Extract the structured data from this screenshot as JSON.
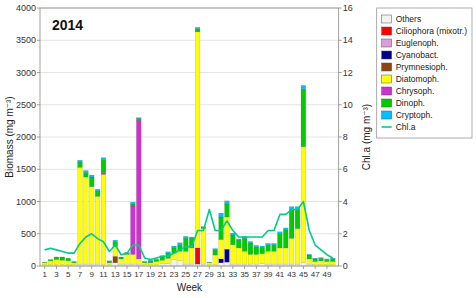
{
  "chart_data": {
    "type": "bar",
    "stacked": true,
    "title": "2014",
    "x_label": "Week",
    "y_label": "Biomass (mg m⁻³)",
    "y2_label": "Chl.a (mg m⁻³)",
    "x": [
      1,
      2,
      3,
      4,
      5,
      6,
      7,
      8,
      9,
      10,
      11,
      12,
      13,
      14,
      15,
      16,
      17,
      18,
      19,
      20,
      21,
      22,
      23,
      24,
      25,
      26,
      27,
      28,
      29,
      30,
      31,
      32,
      33,
      34,
      35,
      36,
      37,
      38,
      39,
      40,
      41,
      42,
      43,
      44,
      45,
      46,
      47,
      48,
      49,
      50
    ],
    "xlim": [
      0.2,
      51
    ],
    "xticks": [
      1,
      3,
      5,
      7,
      9,
      11,
      13,
      15,
      17,
      19,
      21,
      23,
      25,
      27,
      29,
      31,
      33,
      35,
      37,
      39,
      41,
      43,
      45,
      47,
      49
    ],
    "ylim": [
      0,
      4000
    ],
    "yticks": [
      0,
      500,
      1000,
      1500,
      2000,
      2500,
      3000,
      3500,
      4000
    ],
    "y2lim": [
      0,
      16
    ],
    "y2ticks": [
      0,
      2,
      4,
      6,
      8,
      10,
      12,
      14,
      16
    ],
    "grid": true,
    "legend": "upper right",
    "series": [
      {
        "name": "Others",
        "color": "#f2f2f2",
        "values": [
          20,
          20,
          20,
          20,
          20,
          20,
          30,
          30,
          30,
          30,
          20,
          20,
          50,
          30,
          30,
          30,
          30,
          20,
          20,
          20,
          40,
          40,
          100,
          80,
          30,
          30,
          30,
          30,
          20,
          20,
          50,
          60,
          30,
          30,
          30,
          30,
          30,
          40,
          30,
          30,
          30,
          30,
          30,
          30,
          50,
          30,
          20,
          20,
          20,
          20
        ]
      },
      {
        "name": "Ciliophora (mixotr.)",
        "color": "#ff0000",
        "values": [
          0,
          0,
          0,
          0,
          0,
          0,
          0,
          0,
          0,
          0,
          0,
          0,
          0,
          0,
          0,
          0,
          0,
          0,
          0,
          0,
          0,
          0,
          0,
          0,
          0,
          0,
          250,
          0,
          0,
          0,
          0,
          0,
          0,
          0,
          0,
          0,
          0,
          0,
          0,
          0,
          0,
          0,
          0,
          0,
          0,
          0,
          0,
          0,
          0,
          0
        ]
      },
      {
        "name": "Euglenoph.",
        "color": "#d8a0d8",
        "values": [
          0,
          0,
          0,
          0,
          0,
          0,
          0,
          0,
          0,
          0,
          0,
          0,
          0,
          0,
          0,
          0,
          0,
          0,
          0,
          0,
          0,
          0,
          0,
          0,
          0,
          0,
          0,
          0,
          0,
          0,
          0,
          0,
          0,
          0,
          0,
          0,
          0,
          0,
          0,
          0,
          0,
          0,
          0,
          0,
          0,
          0,
          0,
          0,
          0,
          0
        ]
      },
      {
        "name": "Cyanobact.",
        "color": "#00008b",
        "values": [
          0,
          0,
          0,
          0,
          0,
          0,
          0,
          0,
          0,
          0,
          0,
          0,
          0,
          0,
          0,
          0,
          0,
          0,
          0,
          0,
          0,
          0,
          0,
          0,
          0,
          0,
          0,
          0,
          0,
          0,
          60,
          200,
          0,
          0,
          0,
          0,
          0,
          0,
          0,
          0,
          0,
          0,
          0,
          0,
          0,
          0,
          0,
          0,
          0,
          0
        ]
      },
      {
        "name": "Prymnesioph.",
        "color": "#8b4513",
        "values": [
          0,
          0,
          0,
          0,
          0,
          0,
          0,
          0,
          0,
          0,
          0,
          0,
          100,
          0,
          0,
          0,
          0,
          0,
          0,
          0,
          0,
          0,
          0,
          0,
          0,
          0,
          0,
          0,
          0,
          0,
          0,
          0,
          0,
          0,
          0,
          0,
          0,
          0,
          0,
          0,
          0,
          0,
          0,
          0,
          0,
          0,
          0,
          0,
          0,
          0
        ]
      },
      {
        "name": "Diatomoph.",
        "color": "#ffff00",
        "values": [
          30,
          60,
          80,
          70,
          60,
          30,
          1500,
          1350,
          1200,
          1050,
          1400,
          30,
          150,
          80,
          150,
          150,
          80,
          30,
          30,
          50,
          50,
          80,
          100,
          150,
          200,
          250,
          3350,
          550,
          30,
          150,
          300,
          500,
          300,
          250,
          200,
          150,
          150,
          150,
          200,
          200,
          250,
          250,
          400,
          550,
          1800,
          80,
          50,
          60,
          50,
          50
        ]
      },
      {
        "name": "Chrysoph.",
        "color": "#cc33cc",
        "values": [
          0,
          0,
          0,
          0,
          0,
          0,
          0,
          0,
          0,
          0,
          30,
          0,
          0,
          0,
          0,
          750,
          2150,
          0,
          0,
          0,
          0,
          0,
          0,
          0,
          0,
          0,
          0,
          0,
          0,
          0,
          0,
          0,
          0,
          0,
          0,
          0,
          0,
          0,
          0,
          0,
          0,
          0,
          0,
          0,
          0,
          0,
          0,
          0,
          0,
          0
        ]
      },
      {
        "name": "Dinoph.",
        "color": "#00cc00",
        "values": [
          10,
          20,
          40,
          50,
          40,
          20,
          80,
          70,
          150,
          80,
          200,
          30,
          80,
          30,
          20,
          30,
          30,
          20,
          30,
          30,
          50,
          80,
          80,
          100,
          200,
          150,
          50,
          30,
          10,
          80,
          350,
          200,
          150,
          120,
          200,
          180,
          120,
          100,
          100,
          100,
          220,
          280,
          450,
          300,
          900,
          60,
          40,
          40,
          30,
          40
        ]
      },
      {
        "name": "Cryptoph.",
        "color": "#00bfff",
        "values": [
          0,
          0,
          0,
          0,
          0,
          0,
          30,
          30,
          30,
          30,
          30,
          0,
          20,
          0,
          10,
          30,
          10,
          0,
          10,
          10,
          20,
          20,
          30,
          30,
          30,
          20,
          20,
          0,
          0,
          20,
          60,
          50,
          30,
          20,
          30,
          20,
          20,
          20,
          20,
          20,
          30,
          30,
          40,
          40,
          50,
          10,
          10,
          10,
          10,
          10
        ]
      },
      {
        "name": "Chl.a",
        "type": "line",
        "axis": "y2",
        "color": "#00cc88",
        "values": [
          1.0,
          1.1,
          1.0,
          0.9,
          0.8,
          0.8,
          1.4,
          1.8,
          2.0,
          1.7,
          1.5,
          0.9,
          1.3,
          0.7,
          0.8,
          1.3,
          1.3,
          0.5,
          0.4,
          0.5,
          0.6,
          0.6,
          0.8,
          1.0,
          1.2,
          1.2,
          2.2,
          2.2,
          3.5,
          2.2,
          2.2,
          2.8,
          2.2,
          1.8,
          1.8,
          1.8,
          1.8,
          1.8,
          2.2,
          2.2,
          3.2,
          3.2,
          3.5,
          3.5,
          4.0,
          2.2,
          1.3,
          1.0,
          0.7,
          0.5
        ]
      }
    ]
  }
}
